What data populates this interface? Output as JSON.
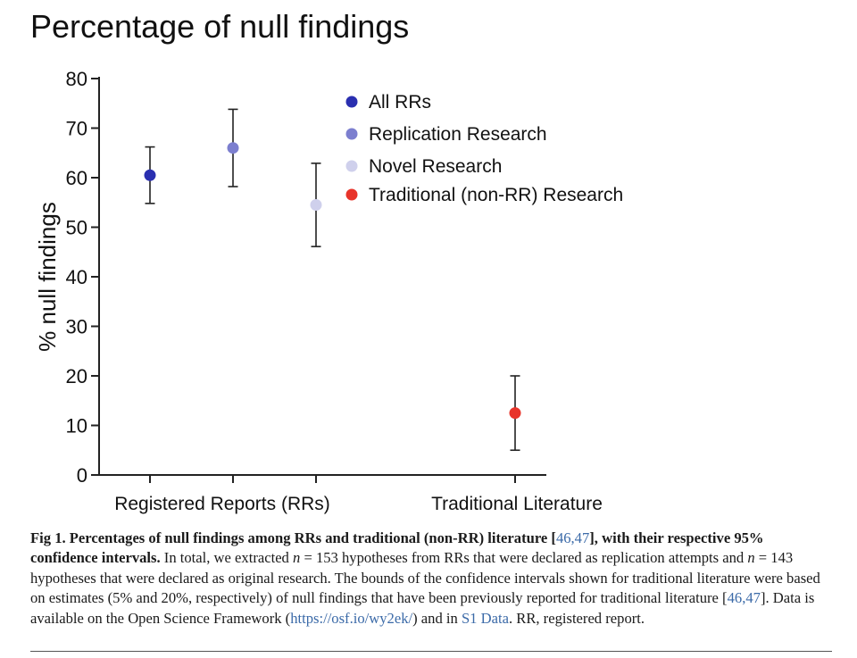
{
  "chart_data": {
    "type": "scatter",
    "title": "Percentage of null findings",
    "ylabel": "% null findings",
    "ylim": [
      0,
      80
    ],
    "yticks": [
      0,
      10,
      20,
      30,
      40,
      50,
      60,
      70,
      80
    ],
    "x_group_labels": [
      "Registered Reports (RRs)",
      "Traditional Literature"
    ],
    "legend_position": "top-right",
    "series": [
      {
        "name": "All RRs",
        "group": "Registered Reports (RRs)",
        "value": 60.5,
        "ci_low": 54.8,
        "ci_high": 66.2,
        "color": "#2a2fb0"
      },
      {
        "name": "Replication Research",
        "group": "Registered Reports (RRs)",
        "value": 66.0,
        "ci_low": 58.2,
        "ci_high": 73.8,
        "color": "#7c7fcf"
      },
      {
        "name": "Novel Research",
        "group": "Registered Reports (RRs)",
        "value": 54.5,
        "ci_low": 46.1,
        "ci_high": 62.9,
        "color": "#cfd0ec"
      },
      {
        "name": "Traditional (non-RR) Research",
        "group": "Traditional Literature",
        "value": 12.5,
        "ci_low": 5.0,
        "ci_high": 20.0,
        "color": "#e8342a"
      }
    ]
  },
  "caption": {
    "fig_label": "Fig 1.",
    "title_a": "Percentages of null findings among RRs and traditional (non-RR) literature [",
    "ref1": "46,47",
    "title_b": "], with their respective 95% confidence intervals.",
    "t1": "In total, we extracted ",
    "n_var1": "n",
    "t2": " = 153 hypotheses from RRs that were declared as replication attempts and ",
    "n_var2": "n",
    "t3": " = 143 hypotheses that were declared as original research. The bounds of the confidence intervals shown for traditional literature were based on estimates (5% and 20%, respectively) of null findings that have been previously reported for traditional literature [",
    "ref2": "46,47",
    "t4": "]. Data is available on the Open Science Framework (",
    "url": "https://osf.io/wy2ek/",
    "t5": ") and in ",
    "s1": "S1 Data",
    "t6": ". RR, registered report."
  }
}
